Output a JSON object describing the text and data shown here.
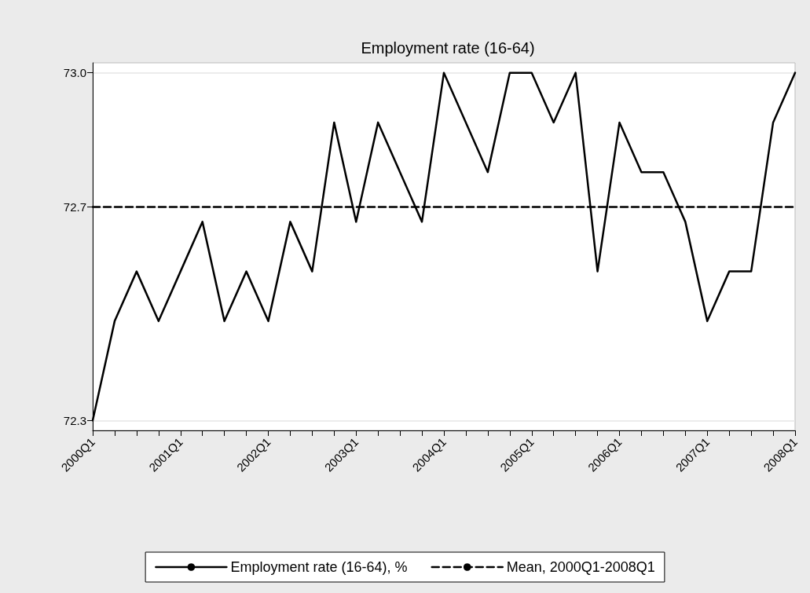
{
  "chart_data": {
    "type": "line",
    "title": "Employment rate (16-64)",
    "categories": [
      "2000Q1",
      null,
      null,
      null,
      "2001Q1",
      null,
      null,
      null,
      "2002Q1",
      null,
      null,
      null,
      "2003Q1",
      null,
      null,
      null,
      "2004Q1",
      null,
      null,
      null,
      "2005Q1",
      null,
      null,
      null,
      "2006Q1",
      null,
      null,
      null,
      "2007Q1",
      null,
      null,
      null,
      "2008Q1"
    ],
    "series": [
      {
        "name": "Employment rate (16-64), %",
        "color": "#000000",
        "line_style": "solid",
        "values": [
          72.3,
          72.5,
          72.6,
          72.5,
          72.6,
          72.7,
          72.5,
          72.6,
          72.5,
          72.7,
          72.6,
          72.9,
          72.7,
          72.9,
          72.8,
          72.7,
          73.0,
          72.9,
          72.8,
          73.0,
          73.0,
          72.9,
          73.0,
          72.6,
          72.9,
          72.8,
          72.8,
          72.7,
          72.5,
          72.6,
          72.6,
          72.9,
          73.0
        ]
      },
      {
        "name": "Mean, 2000Q1-2008Q1",
        "color": "#000000",
        "line_style": "dashed",
        "values": [
          72.73,
          72.73,
          72.73,
          72.73,
          72.73,
          72.73,
          72.73,
          72.73,
          72.73,
          72.73,
          72.73,
          72.73,
          72.73,
          72.73,
          72.73,
          72.73,
          72.73,
          72.73,
          72.73,
          72.73,
          72.73,
          72.73,
          72.73,
          72.73,
          72.73,
          72.73,
          72.73,
          72.73,
          72.73,
          72.73,
          72.73,
          72.73,
          72.73
        ]
      }
    ],
    "ylim": [
      72.28,
      73.02
    ],
    "yticks": [
      {
        "value": 72.3,
        "label": "72.3"
      },
      {
        "value": 72.73,
        "label": "72.7"
      },
      {
        "value": 73.0,
        "label": "73.0"
      }
    ],
    "grid": "y",
    "legend": "bottom",
    "marker": "none"
  }
}
